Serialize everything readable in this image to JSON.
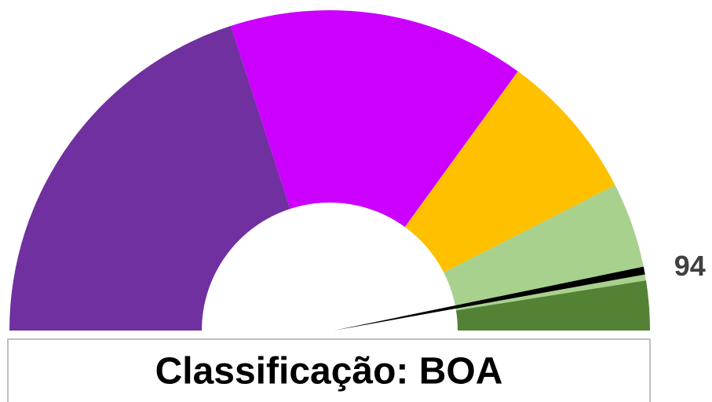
{
  "chart_data": {
    "type": "gauge",
    "title": "Classificação: BOA",
    "values": [
      40,
      30,
      15,
      10,
      5
    ],
    "colors": [
      "#7030a0",
      "#cc00ff",
      "#ffc000",
      "#a9d18e",
      "#548235"
    ],
    "lim": [
      0,
      100
    ],
    "needle": {
      "value": 94,
      "color": "#000000"
    }
  }
}
